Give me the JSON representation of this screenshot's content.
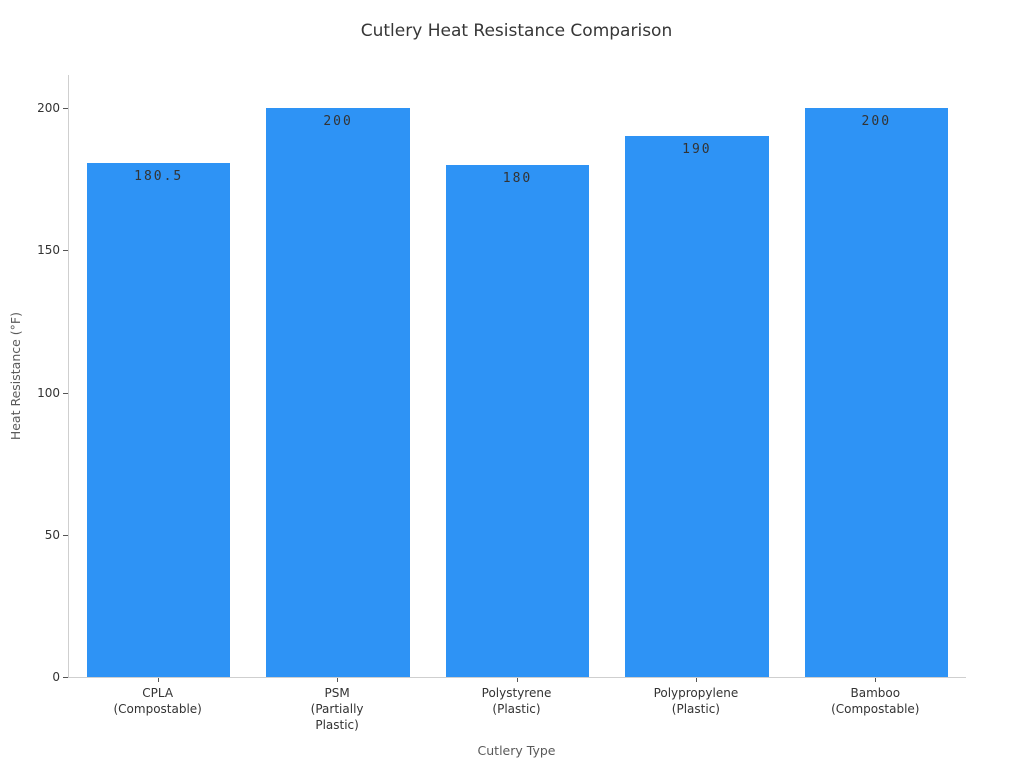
{
  "chart_data": {
    "type": "bar",
    "title": "Cutlery Heat Resistance Comparison",
    "xlabel": "Cutlery Type",
    "ylabel": "Heat Resistance (°F)",
    "categories": [
      "CPLA\n(Compostable)",
      "PSM\n(Partially\nPlastic)",
      "Polystyrene\n(Plastic)",
      "Polypropylene\n(Plastic)",
      "Bamboo\n(Compostable)"
    ],
    "values": [
      180.5,
      200,
      180,
      190,
      200
    ],
    "value_labels": [
      "180.5",
      "200",
      "180",
      "190",
      "200"
    ],
    "yticks": [
      0,
      50,
      100,
      150,
      200
    ],
    "ylim": [
      0,
      211.6
    ],
    "bar_color": "#2E93F5",
    "grid": false,
    "legend": null
  }
}
